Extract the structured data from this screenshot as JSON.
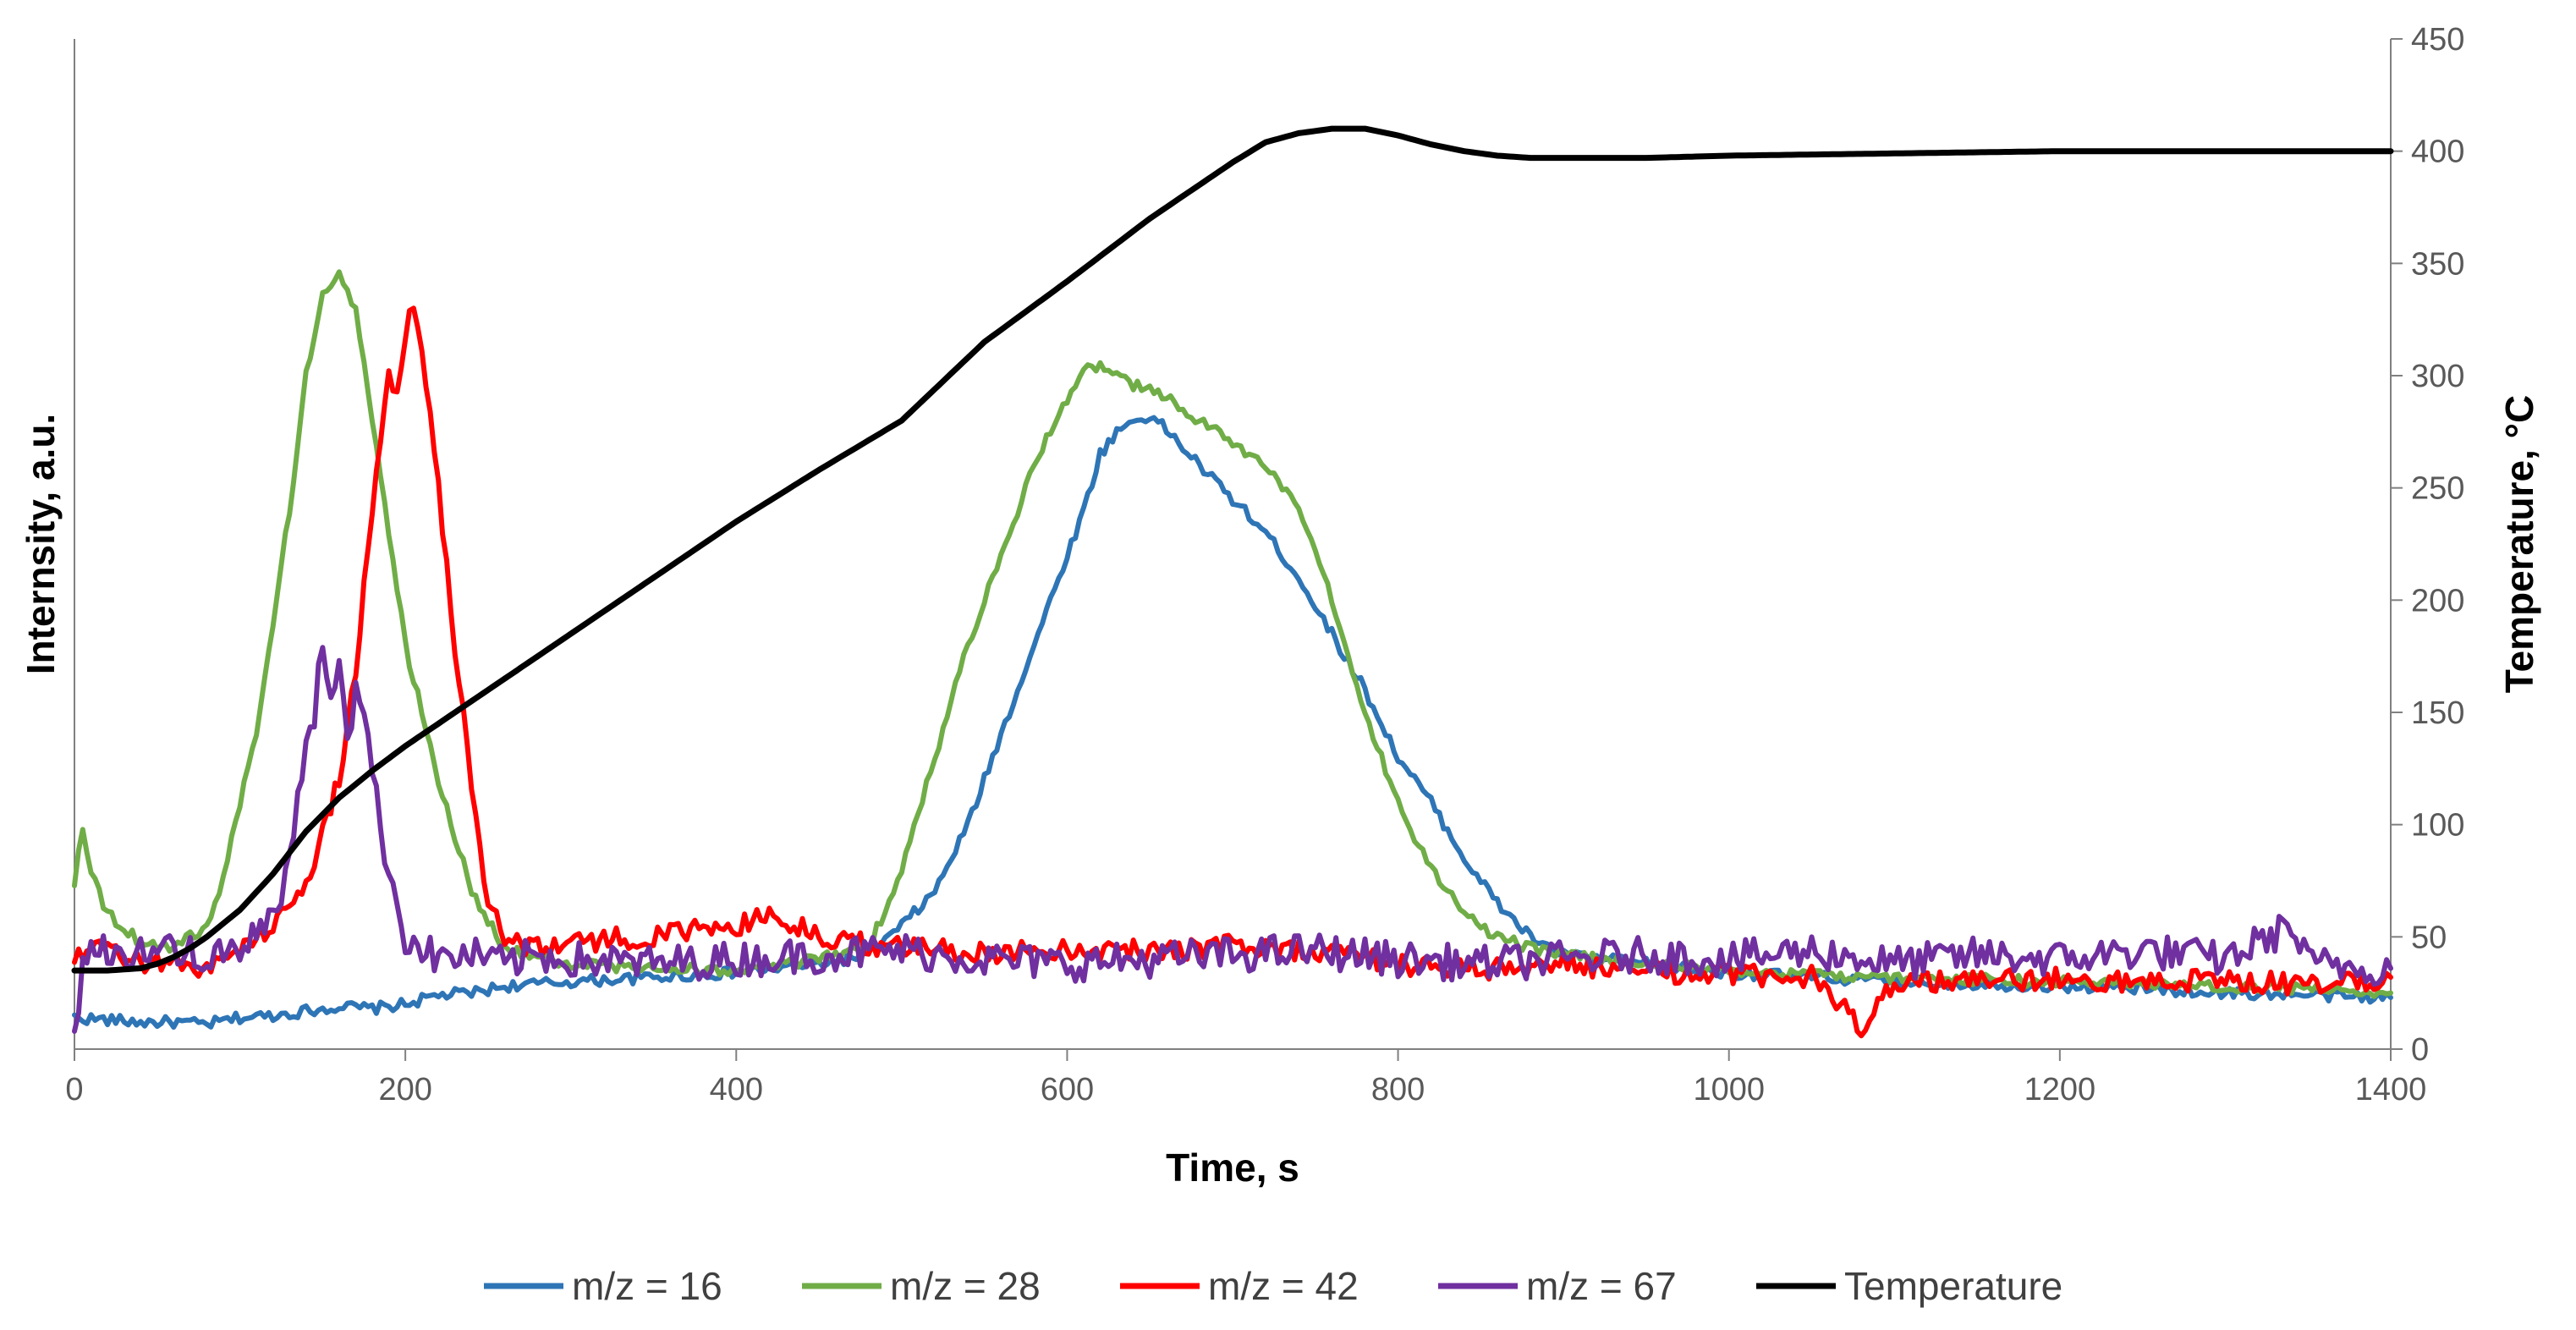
{
  "chart_data": {
    "type": "line",
    "title": "",
    "xlabel": "Time, s",
    "ylabel": "Internsity, a.u.",
    "y2label": "Temperature, °C",
    "xlim": [
      0,
      1400
    ],
    "ylim": [
      0,
      450
    ],
    "y2lim": [
      0,
      450
    ],
    "xticks": [
      "0",
      "200",
      "400",
      "600",
      "800",
      "1000",
      "1200",
      "1400"
    ],
    "y2ticks": [
      "0",
      "50",
      "100",
      "150",
      "200",
      "250",
      "300",
      "350",
      "400",
      "450"
    ],
    "left_axis_ticks_labeled": false,
    "grid": false,
    "legend_position": "bottom",
    "series": [
      {
        "name": "m/z = 16",
        "color": "#2E75B6",
        "axis": "left",
        "x": [
          0,
          20,
          40,
          60,
          80,
          100,
          120,
          140,
          160,
          180,
          200,
          220,
          240,
          260,
          280,
          300,
          350,
          400,
          450,
          480,
          500,
          520,
          540,
          560,
          580,
          600,
          610,
          620,
          630,
          640,
          650,
          660,
          680,
          700,
          720,
          740,
          760,
          780,
          800,
          820,
          840,
          860,
          880,
          900,
          950,
          1000,
          1050,
          1100,
          1150,
          1200,
          1250,
          1300,
          1350,
          1400
        ],
        "y": [
          14,
          13,
          12,
          12,
          11,
          14,
          15,
          17,
          19,
          18,
          20,
          24,
          25,
          28,
          29,
          30,
          32,
          34,
          38,
          42,
          55,
          70,
          100,
          140,
          180,
          220,
          240,
          265,
          275,
          280,
          282,
          276,
          260,
          245,
          230,
          210,
          185,
          160,
          130,
          110,
          85,
          65,
          50,
          42,
          38,
          34,
          32,
          30,
          29,
          28,
          27,
          25,
          24,
          23
        ]
      },
      {
        "name": "m/z = 28",
        "color": "#70AD47",
        "axis": "left",
        "x": [
          0,
          5,
          10,
          20,
          40,
          60,
          80,
          90,
          100,
          110,
          120,
          130,
          140,
          150,
          160,
          170,
          180,
          190,
          200,
          220,
          240,
          260,
          280,
          300,
          350,
          400,
          450,
          480,
          500,
          520,
          540,
          560,
          580,
          600,
          610,
          620,
          630,
          640,
          650,
          660,
          680,
          700,
          720,
          740,
          760,
          780,
          800,
          820,
          840,
          860,
          880,
          900,
          950,
          1000,
          1050,
          1100,
          1150,
          1200,
          1250,
          1300,
          1350,
          1400
        ],
        "y": [
          75,
          100,
          80,
          60,
          48,
          45,
          55,
          75,
          110,
          140,
          190,
          240,
          300,
          335,
          347,
          330,
          280,
          230,
          180,
          120,
          70,
          45,
          40,
          38,
          36,
          35,
          40,
          45,
          80,
          130,
          180,
          220,
          260,
          290,
          302,
          304,
          300,
          296,
          293,
          290,
          280,
          270,
          260,
          240,
          200,
          150,
          110,
          80,
          60,
          50,
          45,
          42,
          38,
          35,
          33,
          32,
          31,
          30,
          29,
          28,
          27,
          25
        ]
      },
      {
        "name": "m/z = 42",
        "color": "#FF0000",
        "axis": "left",
        "x": [
          0,
          20,
          40,
          60,
          80,
          100,
          120,
          140,
          150,
          160,
          170,
          180,
          190,
          195,
          200,
          205,
          210,
          220,
          230,
          240,
          250,
          260,
          280,
          300,
          350,
          400,
          420,
          450,
          480,
          500,
          550,
          600,
          650,
          700,
          750,
          790,
          800,
          850,
          900,
          950,
          1000,
          1050,
          1080,
          1100,
          1150,
          1200,
          1250,
          1300,
          1350,
          1400
        ],
        "y": [
          40,
          45,
          38,
          40,
          35,
          45,
          55,
          75,
          95,
          120,
          170,
          240,
          300,
          290,
          320,
          335,
          310,
          250,
          180,
          120,
          65,
          50,
          45,
          48,
          50,
          55,
          60,
          50,
          47,
          45,
          43,
          45,
          44,
          46,
          44,
          40,
          38,
          35,
          38,
          34,
          33,
          32,
          10,
          31,
          30,
          32,
          30,
          31,
          28,
          32
        ]
      },
      {
        "name": "m/z = 67",
        "color": "#7030A0",
        "axis": "left",
        "x": [
          0,
          5,
          10,
          20,
          40,
          60,
          80,
          100,
          110,
          120,
          130,
          140,
          145,
          150,
          155,
          160,
          165,
          170,
          175,
          180,
          190,
          200,
          210,
          220,
          240,
          260,
          280,
          300,
          350,
          400,
          450,
          500,
          550,
          600,
          650,
          700,
          750,
          800,
          850,
          900,
          950,
          1000,
          1050,
          1100,
          1150,
          1200,
          1250,
          1300,
          1340,
          1350,
          1400
        ],
        "y": [
          5,
          40,
          45,
          42,
          44,
          45,
          40,
          42,
          50,
          60,
          80,
          140,
          150,
          180,
          155,
          178,
          140,
          160,
          155,
          120,
          80,
          50,
          45,
          40,
          42,
          38,
          42,
          40,
          38,
          40,
          42,
          44,
          40,
          38,
          40,
          42,
          44,
          40,
          38,
          40,
          42,
          40,
          44,
          38,
          42,
          40,
          44,
          40,
          55,
          38,
          36
        ]
      },
      {
        "name": "Temperature",
        "color": "#000000",
        "axis": "right",
        "x": [
          0,
          20,
          40,
          50,
          60,
          70,
          80,
          100,
          120,
          140,
          160,
          180,
          200,
          250,
          300,
          350,
          400,
          450,
          500,
          550,
          600,
          650,
          700,
          720,
          740,
          760,
          770,
          780,
          800,
          820,
          840,
          860,
          880,
          900,
          950,
          1000,
          1100,
          1200,
          1300,
          1400
        ],
        "y": [
          35,
          35,
          36,
          38,
          41,
          45,
          50,
          62,
          78,
          97,
          112,
          124,
          135,
          160,
          185,
          210,
          235,
          258,
          280,
          315,
          342,
          370,
          395,
          404,
          408,
          410,
          410,
          410,
          407,
          403,
          400,
          398,
          397,
          397,
          397,
          398,
          399,
          400,
          400,
          400
        ]
      }
    ]
  }
}
